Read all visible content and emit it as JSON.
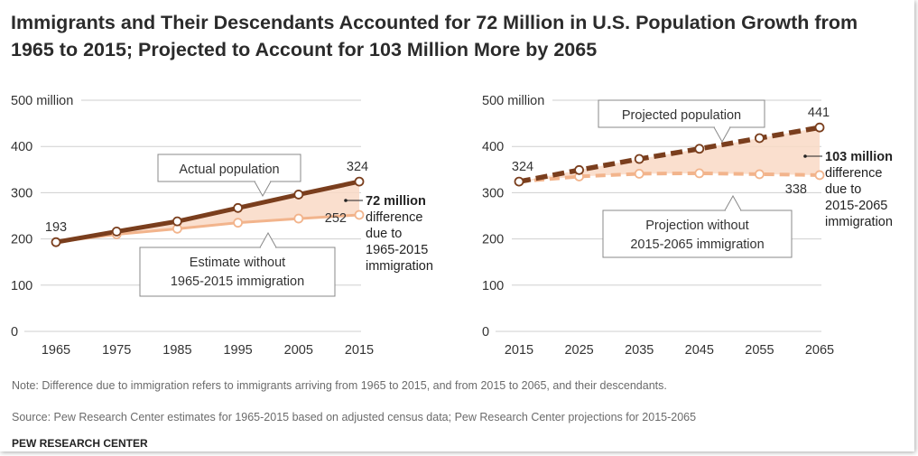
{
  "title": "Immigrants and Their Descendants Accounted for 72 Million in U.S. Population Growth from 1965 to 2015; Projected to Account for 103 Million More by 2065",
  "colors": {
    "actual": "#7a3e1d",
    "without": "#f2b48c",
    "fill": "#f9d9c6",
    "grid": "#cfcfcf",
    "axis_text": "#333333"
  },
  "chart_data": [
    {
      "type": "line",
      "x": [
        1965,
        1975,
        1985,
        1995,
        2005,
        2015
      ],
      "ylim": [
        0,
        500
      ],
      "yticks": [
        0,
        100,
        200,
        300,
        400,
        500
      ],
      "ytick_labels": [
        "0",
        "100",
        "200",
        "300",
        "400",
        "500 million"
      ],
      "xtick_labels": [
        "1965",
        "1975",
        "1985",
        "1995",
        "2005",
        "2015"
      ],
      "series": [
        {
          "name": "Actual population",
          "style": "solid",
          "values": [
            193,
            216,
            238,
            267,
            296,
            324
          ]
        },
        {
          "name": "Estimate without 1965-2015 immigration",
          "style": "solid",
          "values": [
            193,
            210,
            222,
            235,
            244,
            252
          ]
        }
      ],
      "labels": {
        "start": "193",
        "end_top": "324",
        "end_bottom": "252",
        "callout_top": "Actual population",
        "callout_bottom_1": "Estimate without",
        "callout_bottom_2": "1965-2015 immigration",
        "diff_bold": "72 million",
        "diff_lines": [
          "difference",
          "due to",
          "1965-2015",
          "immigration"
        ]
      }
    },
    {
      "type": "line",
      "x": [
        2015,
        2025,
        2035,
        2045,
        2055,
        2065
      ],
      "ylim": [
        0,
        500
      ],
      "yticks": [
        0,
        100,
        200,
        300,
        400,
        500
      ],
      "ytick_labels": [
        "0",
        "100",
        "200",
        "300",
        "400",
        "500 million"
      ],
      "xtick_labels": [
        "2015",
        "2025",
        "2035",
        "2045",
        "2055",
        "2065"
      ],
      "series": [
        {
          "name": "Projected population",
          "style": "dashed",
          "values": [
            324,
            349,
            373,
            395,
            418,
            441
          ]
        },
        {
          "name": "Projection without 2015-2065 immigration",
          "style": "dashed",
          "values": [
            324,
            335,
            341,
            342,
            340,
            338
          ]
        }
      ],
      "labels": {
        "start": "324",
        "end_top": "441",
        "end_bottom": "338",
        "callout_top": "Projected population",
        "callout_bottom_1": "Projection without",
        "callout_bottom_2": "2015-2065 immigration",
        "diff_bold": "103 million",
        "diff_lines": [
          "difference",
          "due to",
          "2015-2065",
          "immigration"
        ]
      }
    }
  ],
  "note": "Note: Difference due to immigration refers to immigrants arriving from 1965 to 2015, and from 2015 to 2065, and their descendants.",
  "source": "Source: Pew Research Center estimates for 1965-2015 based on adjusted census data; Pew Research Center projections for 2015-2065",
  "brand": "PEW RESEARCH CENTER"
}
